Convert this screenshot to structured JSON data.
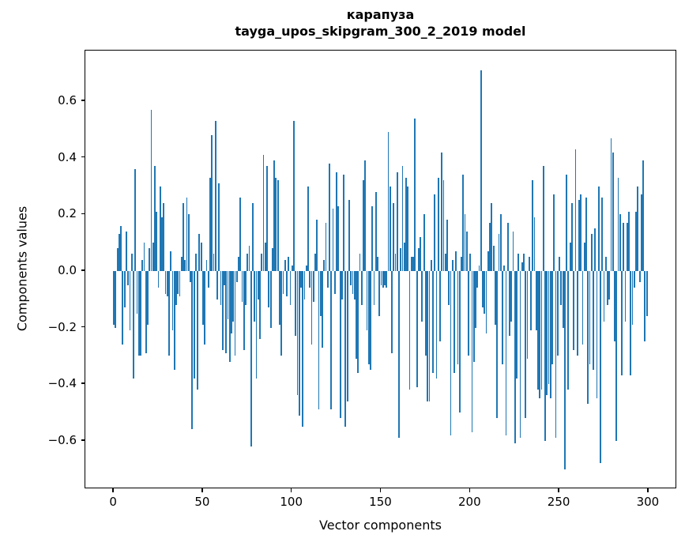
{
  "chart_data": {
    "type": "bar",
    "title": "карапуза",
    "subtitle": "tayga_upos_skipgram_300_2_2019 model",
    "xlabel": "Vector components",
    "ylabel": "Components values",
    "bar_color": "#1f77b4",
    "n_components": 300,
    "x_start": 0,
    "xlim": [
      -16,
      316
    ],
    "ylim": [
      -0.771,
      0.779
    ],
    "bar_width": 0.8,
    "grid": false,
    "legend": null,
    "x_ticks": [
      {
        "value": 0,
        "label": "0"
      },
      {
        "value": 50,
        "label": "50"
      },
      {
        "value": 100,
        "label": "100"
      },
      {
        "value": 150,
        "label": "150"
      },
      {
        "value": 200,
        "label": "200"
      },
      {
        "value": 250,
        "label": "250"
      },
      {
        "value": 300,
        "label": "300"
      }
    ],
    "y_ticks": [
      {
        "value": 0.6,
        "label": "0.6"
      },
      {
        "value": 0.4,
        "label": "0.4"
      },
      {
        "value": 0.2,
        "label": "0.2"
      },
      {
        "value": 0.0,
        "label": "0.0"
      },
      {
        "value": -0.2,
        "label": "−0.2"
      },
      {
        "value": -0.4,
        "label": "−0.4"
      },
      {
        "value": -0.6,
        "label": "−0.6"
      }
    ],
    "values": [
      -0.19,
      -0.2,
      0.08,
      0.13,
      0.16,
      -0.26,
      -0.13,
      0.14,
      -0.05,
      -0.21,
      0.06,
      -0.38,
      0.36,
      -0.15,
      -0.3,
      -0.3,
      0.04,
      0.1,
      -0.29,
      -0.19,
      0.08,
      0.57,
      0.1,
      0.37,
      0.21,
      -0.06,
      0.3,
      0.19,
      0.24,
      -0.08,
      -0.09,
      -0.3,
      0.07,
      -0.21,
      -0.35,
      -0.12,
      -0.08,
      -0.09,
      0.05,
      0.24,
      0.04,
      0.26,
      0.2,
      -0.04,
      -0.56,
      -0.38,
      0.06,
      -0.42,
      0.13,
      0.1,
      -0.19,
      -0.26,
      0.04,
      -0.06,
      0.33,
      0.48,
      0.06,
      0.53,
      -0.1,
      0.31,
      -0.12,
      -0.28,
      -0.05,
      -0.29,
      -0.17,
      -0.32,
      -0.22,
      -0.18,
      -0.3,
      -0.04,
      0.05,
      0.26,
      -0.11,
      -0.28,
      -0.12,
      0.06,
      0.09,
      -0.62,
      0.24,
      -0.18,
      -0.38,
      -0.1,
      -0.24,
      0.06,
      0.41,
      0.1,
      0.37,
      -0.13,
      -0.2,
      0.08,
      0.39,
      0.33,
      0.32,
      -0.19,
      -0.3,
      -0.08,
      0.04,
      -0.09,
      0.05,
      -0.12,
      0.02,
      0.53,
      -0.23,
      -0.44,
      -0.51,
      -0.06,
      -0.55,
      -0.1,
      0.02,
      0.3,
      -0.06,
      -0.26,
      -0.11,
      0.06,
      0.18,
      -0.49,
      -0.16,
      -0.27,
      0.04,
      0.17,
      -0.06,
      0.38,
      -0.49,
      0.22,
      -0.08,
      0.35,
      0.23,
      -0.52,
      -0.1,
      0.34,
      -0.55,
      -0.46,
      0.25,
      -0.05,
      -0.08,
      -0.1,
      -0.31,
      -0.36,
      0.06,
      -0.12,
      0.32,
      0.39,
      -0.21,
      -0.33,
      -0.35,
      0.23,
      -0.12,
      0.28,
      0.05,
      -0.16,
      -0.05,
      -0.06,
      -0.05,
      -0.06,
      0.49,
      0.3,
      -0.29,
      0.24,
      0.06,
      0.35,
      -0.59,
      0.08,
      0.37,
      0.1,
      0.33,
      0.3,
      -0.42,
      0.05,
      0.05,
      0.54,
      -0.41,
      0.08,
      0.12,
      -0.18,
      0.2,
      -0.3,
      -0.46,
      -0.46,
      0.04,
      -0.36,
      0.27,
      -0.38,
      0.33,
      -0.25,
      0.42,
      0.32,
      0.06,
      0.18,
      -0.12,
      -0.58,
      0.04,
      -0.36,
      0.07,
      -0.33,
      -0.5,
      0.05,
      0.34,
      0.2,
      0.14,
      -0.3,
      0.06,
      -0.57,
      -0.32,
      -0.2,
      -0.06,
      0.02,
      0.71,
      -0.13,
      -0.15,
      -0.22,
      0.07,
      0.17,
      0.24,
      0.09,
      -0.19,
      -0.52,
      0.13,
      0.2,
      -0.33,
      0.02,
      -0.58,
      0.17,
      -0.23,
      -0.18,
      0.14,
      -0.61,
      -0.38,
      0.06,
      -0.59,
      0.03,
      0.06,
      -0.52,
      -0.31,
      0.05,
      -0.21,
      0.32,
      0.19,
      -0.21,
      -0.42,
      -0.45,
      -0.42,
      0.37,
      -0.6,
      -0.44,
      -0.4,
      -0.45,
      -0.33,
      0.27,
      -0.59,
      -0.3,
      0.05,
      -0.12,
      -0.2,
      -0.7,
      0.34,
      -0.42,
      0.1,
      0.24,
      -0.28,
      0.43,
      -0.3,
      0.25,
      0.27,
      -0.26,
      0.1,
      0.26,
      -0.47,
      -0.33,
      0.13,
      -0.35,
      0.15,
      -0.45,
      0.3,
      -0.68,
      0.26,
      -0.18,
      0.05,
      -0.12,
      -0.1,
      0.47,
      0.42,
      -0.25,
      -0.6,
      0.33,
      0.2,
      -0.37,
      0.17,
      -0.18,
      0.17,
      0.21,
      -0.37,
      -0.19,
      -0.06,
      0.21,
      0.3,
      -0.04,
      0.27,
      0.39,
      -0.25,
      -0.16
    ]
  }
}
